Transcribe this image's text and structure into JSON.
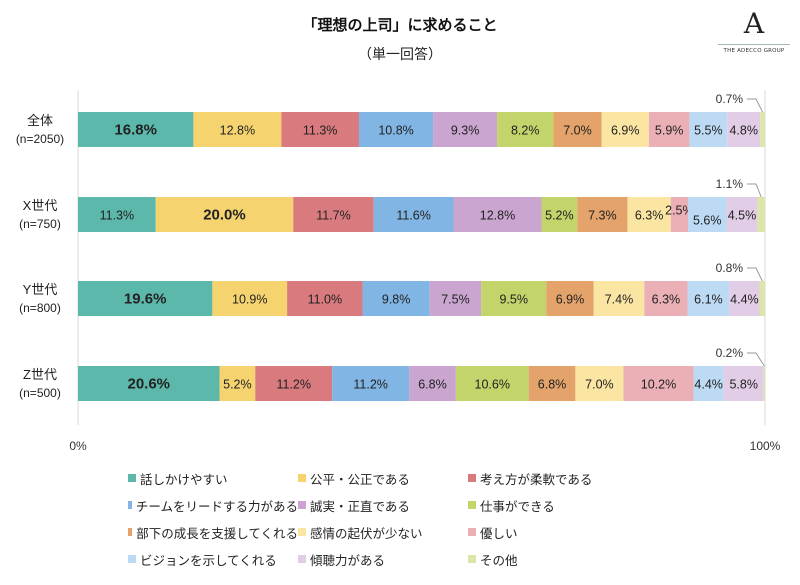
{
  "title": "「理想の上司」に求めること",
  "subtitle": "（単一回答）",
  "logo": {
    "mark": "A",
    "text": "THE ADECCO GROUP"
  },
  "chart_data": {
    "type": "bar",
    "orientation": "horizontal-stacked-100",
    "categories": [
      {
        "label": "全体",
        "n": "(n=2050)"
      },
      {
        "label": "X世代",
        "n": "(n=750)"
      },
      {
        "label": "Y世代",
        "n": "(n=800)"
      },
      {
        "label": "Z世代",
        "n": "(n=500)"
      }
    ],
    "xlim": [
      0,
      100
    ],
    "x_ticks": [
      "0%",
      "100%"
    ],
    "legend_position": "bottom",
    "series": [
      {
        "name": "話しかけやすい",
        "color": "#5cb8ab",
        "values": [
          16.8,
          11.3,
          19.6,
          20.6
        ]
      },
      {
        "name": "公平・公正である",
        "color": "#f5d470",
        "values": [
          12.8,
          20.0,
          10.9,
          5.2
        ]
      },
      {
        "name": "考え方が柔軟である",
        "color": "#d97a7e",
        "values": [
          11.3,
          11.7,
          11.0,
          11.2
        ]
      },
      {
        "name": "チームをリードする力がある",
        "color": "#80b5e4",
        "values": [
          10.8,
          11.6,
          9.8,
          11.2
        ]
      },
      {
        "name": "誠実・正直である",
        "color": "#c9a5d0",
        "values": [
          9.3,
          12.8,
          7.5,
          6.8
        ]
      },
      {
        "name": "仕事ができる",
        "color": "#c2d46a",
        "values": [
          8.2,
          5.2,
          9.5,
          10.6
        ]
      },
      {
        "name": "部下の成長を支援してくれる",
        "color": "#e3a36a",
        "values": [
          7.0,
          7.3,
          6.9,
          6.8
        ]
      },
      {
        "name": "感情の起伏が少ない",
        "color": "#fbe5a3",
        "values": [
          6.9,
          6.3,
          7.4,
          7.0
        ]
      },
      {
        "name": "優しい",
        "color": "#eab0b5",
        "values": [
          5.9,
          2.5,
          6.3,
          10.2
        ]
      },
      {
        "name": "ビジョンを示してくれる",
        "color": "#bcdaf3",
        "values": [
          5.5,
          5.6,
          6.1,
          4.4
        ]
      },
      {
        "name": "傾聴力がある",
        "color": "#e2cde6",
        "values": [
          4.8,
          4.5,
          4.4,
          5.8
        ]
      },
      {
        "name": "その他",
        "color": "#dbe6a8",
        "values": [
          0.7,
          1.1,
          0.8,
          0.2
        ]
      }
    ]
  }
}
